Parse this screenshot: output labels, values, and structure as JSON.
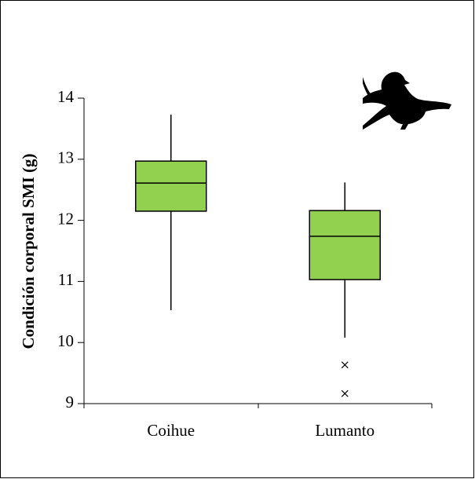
{
  "chart_data": {
    "type": "box",
    "y_label": "Condición corporal SMI (g)",
    "categories": [
      "Coihue",
      "Lumanto"
    ],
    "color": "#92d050",
    "boxes": [
      {
        "min": 10.53,
        "q1": 12.15,
        "median": 12.61,
        "q3": 12.97,
        "max": 13.73,
        "outliers": []
      },
      {
        "min": 10.08,
        "q1": 11.03,
        "median": 11.74,
        "q3": 12.16,
        "max": 12.62,
        "outliers": [
          9.66,
          9.19
        ]
      }
    ],
    "ylim": [
      9,
      14
    ],
    "yticks": [
      9,
      10,
      11,
      12,
      13,
      14
    ]
  }
}
